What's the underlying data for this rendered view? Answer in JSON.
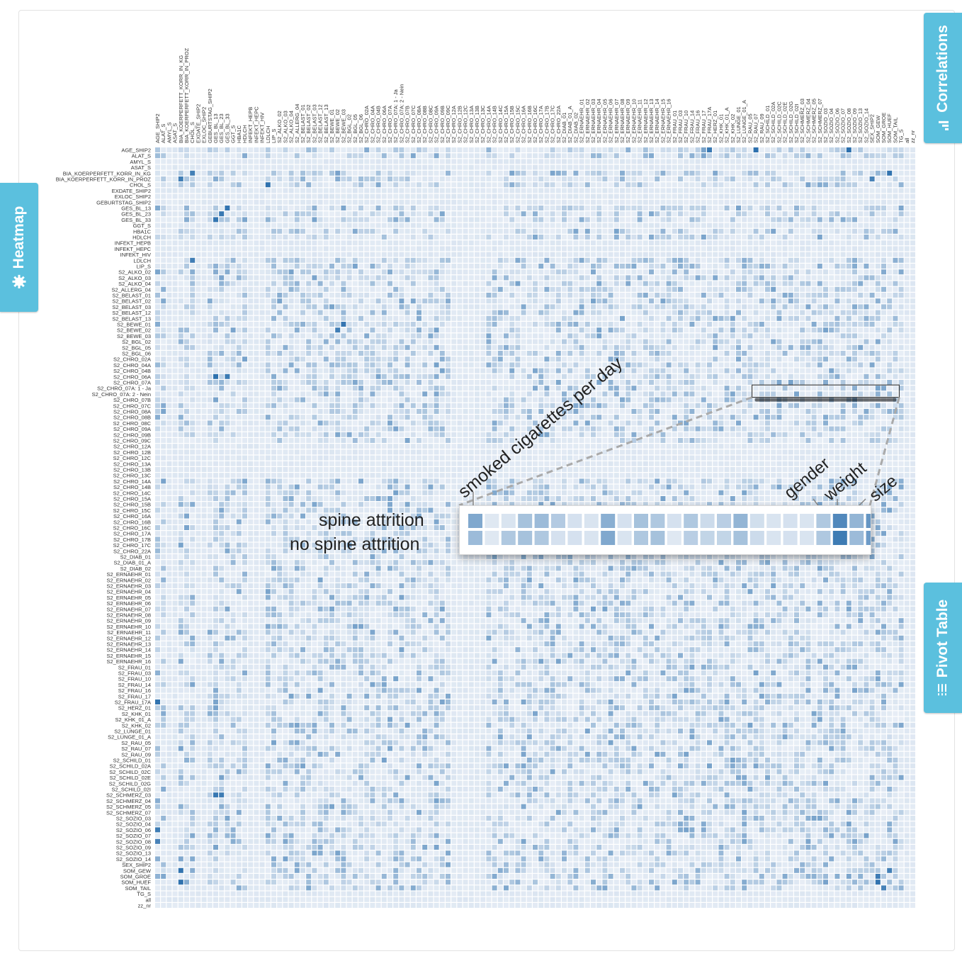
{
  "tabs": {
    "heatmap": "Heatmap",
    "correlations": "Correlations",
    "pivot_table": "Pivot Table"
  },
  "icons": {
    "heatmap": "gear-icon",
    "correlations": "bar-chart-icon",
    "pivot_table": "list-icon"
  },
  "colors": {
    "tab": "#5bc0de",
    "cell_light": "#e8eef6",
    "cell_dark": "#2b6fad",
    "highlight": "#1d4e86"
  },
  "annotations": {
    "smoked": "smoked cigarettes per day",
    "gender": "gender",
    "weight": "weight",
    "size": "size",
    "spine": "spine attrition",
    "no_spine": "no spine attrition"
  },
  "zoom": {
    "rows": [
      "spine attrition",
      "no spine attrition"
    ],
    "spine": [
      0.55,
      0.05,
      0.08,
      0.35,
      0.4,
      0.28,
      0.1,
      0.08,
      0.5,
      0.1,
      0.35,
      0.3,
      0.1,
      0.3,
      0.15,
      0.25,
      0.45,
      0.12,
      0.08,
      0.1,
      0.08,
      0.3,
      0.8,
      0.45,
      0.7
    ],
    "no_spine": [
      0.4,
      0.05,
      0.3,
      0.35,
      0.3,
      0.1,
      0.1,
      0.08,
      0.55,
      0.08,
      0.3,
      0.35,
      0.05,
      0.25,
      0.2,
      0.2,
      0.35,
      0.15,
      0.08,
      0.1,
      0.08,
      0.3,
      0.9,
      0.4,
      0.65
    ]
  },
  "chart_data": {
    "type": "heatmap",
    "rows": [
      "AGE_SHIP2",
      "ALAT_S",
      "AMYL_S",
      "ASAT_S",
      "BIA_KOERPERFETT_KORR_IN_KG",
      "BIA_KOERPERFETT_KORR_IN_PROZ",
      "CHOL_S",
      "EXDATE_SHIP2",
      "EXLOC_SHIP2",
      "GEBURTSTAG_SHIP2",
      "GES_BL_13",
      "GES_BL_23",
      "GES_BL_33",
      "GGT_S",
      "HBA1C",
      "HDLCH",
      "INFEKT_HEPB",
      "INFEKT_HEPC",
      "INFEKT_HIV",
      "LDLCH",
      "LIP_S",
      "S2_ALKO_02",
      "S2_ALKO_03",
      "S2_ALKO_04",
      "S2_ALLERG_04",
      "S2_BELAST_01",
      "S2_BELAST_02",
      "S2_BELAST_03",
      "S2_BELAST_12",
      "S2_BELAST_13",
      "S2_BEWE_01",
      "S2_BEWE_02",
      "S2_BEWE_03",
      "S2_BGL_02",
      "S2_BGL_05",
      "S2_BGL_06",
      "S2_CHRO_02A",
      "S2_CHRO_04A",
      "S2_CHRO_04B",
      "S2_CHRO_06A",
      "S2_CHRO_07A",
      "S2_CHRO_07A: 1 - Ja",
      "S2_CHRO_07A: 2 - Nein",
      "S2_CHRO_07B",
      "S2_CHRO_07C",
      "S2_CHRO_08A",
      "S2_CHRO_08B",
      "S2_CHRO_08C",
      "S2_CHRO_09A",
      "S2_CHRO_09B",
      "S2_CHRO_09C",
      "S2_CHRO_12A",
      "S2_CHRO_12B",
      "S2_CHRO_12C",
      "S2_CHRO_13A",
      "S2_CHRO_13B",
      "S2_CHRO_13C",
      "S2_CHRO_14A",
      "S2_CHRO_14B",
      "S2_CHRO_14C",
      "S2_CHRO_15A",
      "S2_CHRO_15B",
      "S2_CHRO_15C",
      "S2_CHRO_16A",
      "S2_CHRO_16B",
      "S2_CHRO_16C",
      "S2_CHRO_17A",
      "S2_CHRO_17B",
      "S2_CHRO_17C",
      "S2_CHRO_22A",
      "S2_DIAB_01",
      "S2_DIAB_01_A",
      "S2_DIAB_02",
      "S2_ERNAEHR_01",
      "S2_ERNAEHR_02",
      "S2_ERNAEHR_03",
      "S2_ERNAEHR_04",
      "S2_ERNAEHR_05",
      "S2_ERNAEHR_06",
      "S2_ERNAEHR_07",
      "S2_ERNAEHR_08",
      "S2_ERNAEHR_09",
      "S2_ERNAEHR_10",
      "S2_ERNAEHR_11",
      "S2_ERNAEHR_12",
      "S2_ERNAEHR_13",
      "S2_ERNAEHR_14",
      "S2_ERNAEHR_15",
      "S2_ERNAEHR_16",
      "S2_FRAU_01",
      "S2_FRAU_03",
      "S2_FRAU_10",
      "S2_FRAU_14",
      "S2_FRAU_16",
      "S2_FRAU_17",
      "S2_FRAU_17A",
      "S2_HERZ_01",
      "S2_KHK_01",
      "S2_KHK_01_A",
      "S2_KHK_02",
      "S2_LUNGE_01",
      "S2_LUNGE_01_A",
      "S2_RAU_05",
      "S2_RAU_07",
      "S2_RAU_09",
      "S2_SCHILD_01",
      "S2_SCHILD_02A",
      "S2_SCHILD_02C",
      "S2_SCHILD_02E",
      "S2_SCHILD_02G",
      "S2_SCHILD_02I",
      "S2_SCHMERZ_03",
      "S2_SCHMERZ_04",
      "S2_SCHMERZ_05",
      "S2_SCHMERZ_07",
      "S2_SOZIO_03",
      "S2_SOZIO_04",
      "S2_SOZIO_06",
      "S2_SOZIO_07",
      "S2_SOZIO_08",
      "S2_SOZIO_09",
      "S2_SOZIO_13",
      "S2_SOZIO_14",
      "SEX_SHIP2",
      "SOM_GEW",
      "SOM_GROE",
      "SOM_HUEF",
      "SOM_TAIL",
      "TG_S",
      "all",
      "zz_nr"
    ],
    "columns": [
      "AGE_SHIP2",
      "ALAT_S",
      "AMYL_S",
      "ASAT_S",
      "BIA_KOERPERFETT_KORR_IN_KG",
      "BIA_KOERPERFETT_KORR_IN_PROZ",
      "CHOL_S",
      "EXDATE_SHIP2",
      "EXLOC_SHIP2",
      "GEBURTSTAG_SHIP2",
      "GES_BL_13",
      "GES_BL_23",
      "GES_BL_33",
      "GGT_S",
      "HBA1C",
      "HDLCH",
      "INFEKT_HEPB",
      "INFEKT_HEPC",
      "INFEKT_HIV",
      "LDLCH",
      "LIP_S",
      "S2_ALKO_02",
      "S2_ALKO_03",
      "S2_ALKO_04",
      "S2_ALLERG_04",
      "S2_BELAST_01",
      "S2_BELAST_02",
      "S2_BELAST_03",
      "S2_BELAST_12",
      "S2_BELAST_13",
      "S2_BEWE_01",
      "S2_BEWE_02",
      "S2_BEWE_03",
      "S2_BGL_02",
      "S2_BGL_05",
      "S2_BGL_06",
      "S2_CHRO_02A",
      "S2_CHRO_04A",
      "S2_CHRO_04B",
      "S2_CHRO_06A",
      "S2_CHRO_07A",
      "S2_CHRO_07A: 1 - Ja",
      "S2_CHRO_07A: 2 - Nein",
      "S2_CHRO_07B",
      "S2_CHRO_07C",
      "S2_CHRO_08A",
      "S2_CHRO_08B",
      "S2_CHRO_08C",
      "S2_CHRO_09A",
      "S2_CHRO_09B",
      "S2_CHRO_09C",
      "S2_CHRO_12A",
      "S2_CHRO_12B",
      "S2_CHRO_12C",
      "S2_CHRO_13A",
      "S2_CHRO_13B",
      "S2_CHRO_13C",
      "S2_CHRO_14A",
      "S2_CHRO_14B",
      "S2_CHRO_14C",
      "S2_CHRO_15A",
      "S2_CHRO_15B",
      "S2_CHRO_15C",
      "S2_CHRO_16A",
      "S2_CHRO_16B",
      "S2_CHRO_16C",
      "S2_CHRO_17A",
      "S2_CHRO_17B",
      "S2_CHRO_17C",
      "S2_CHRO_22A",
      "S2_DIAB_01",
      "S2_DIAB_01_A",
      "S2_DIAB_02",
      "S2_ERNAEHR_01",
      "S2_ERNAEHR_02",
      "S2_ERNAEHR_03",
      "S2_ERNAEHR_04",
      "S2_ERNAEHR_05",
      "S2_ERNAEHR_06",
      "S2_ERNAEHR_07",
      "S2_ERNAEHR_08",
      "S2_ERNAEHR_09",
      "S2_ERNAEHR_10",
      "S2_ERNAEHR_11",
      "S2_ERNAEHR_12",
      "S2_ERNAEHR_13",
      "S2_ERNAEHR_14",
      "S2_ERNAEHR_15",
      "S2_ERNAEHR_16",
      "S2_FRAU_01",
      "S2_FRAU_03",
      "S2_FRAU_10",
      "S2_FRAU_14",
      "S2_FRAU_16",
      "S2_FRAU_17",
      "S2_FRAU_17A",
      "S2_HERZ_01",
      "S2_KHK_01",
      "S2_KHK_01_A",
      "S2_KHK_02",
      "S2_LUNGE_01",
      "S2_LUNGE_01_A",
      "S2_RAU_05",
      "S2_RAU_07",
      "S2_RAU_09",
      "S2_SCHILD_01",
      "S2_SCHILD_02A",
      "S2_SCHILD_02C",
      "S2_SCHILD_02E",
      "S2_SCHILD_02G",
      "S2_SCHILD_02I",
      "S2_SCHMERZ_03",
      "S2_SCHMERZ_04",
      "S2_SCHMERZ_05",
      "S2_SCHMERZ_07",
      "S2_SOZIO_03",
      "S2_SOZIO_04",
      "S2_SOZIO_06",
      "S2_SOZIO_07",
      "S2_SOZIO_08",
      "S2_SOZIO_09",
      "S2_SOZIO_13",
      "S2_SOZIO_14",
      "SEX_SHIP2",
      "SOM_GEW",
      "SOM_GROE",
      "SOM_HUEF",
      "SOM_TAIL",
      "TG_S",
      "all",
      "zz_nr"
    ],
    "highlighted_row": "S2_CHRO_07A",
    "strong_cells": [
      [
        "BIA_KOERPERFETT_KORR_IN_KG",
        "CHOL_S"
      ],
      [
        "BIA_KOERPERFETT_KORR_IN_PROZ",
        "BIA_KOERPERFETT_KORR_IN_KG"
      ],
      [
        "CHOL_S",
        "LDLCH"
      ],
      [
        "LDLCH",
        "CHOL_S"
      ],
      [
        "GES_BL_13",
        "GES_BL_33"
      ],
      [
        "GES_BL_23",
        "GES_BL_23"
      ],
      [
        "GES_BL_33",
        "GES_BL_13"
      ],
      [
        "S2_BEWE_01",
        "S2_BEWE_03"
      ],
      [
        "S2_BEWE_02",
        "S2_BEWE_02"
      ],
      [
        "S2_CHRO_06A",
        "GES_BL_13"
      ],
      [
        "S2_CHRO_06A",
        "GES_BL_33"
      ],
      [
        "S2_FRAU_17A",
        "AGE_SHIP2"
      ],
      [
        "S2_SOZIO_06",
        "AGE_SHIP2"
      ],
      [
        "S2_SOZIO_08",
        "AGE_SHIP2"
      ],
      [
        "S2_SCHMERZ_03",
        "GES_BL_13"
      ],
      [
        "S2_SCHMERZ_03",
        "GES_BL_23"
      ],
      [
        "SOM_GEW",
        "SOM_HUEF"
      ],
      [
        "SOM_GROE",
        "SOM_GEW"
      ],
      [
        "SOM_HUEF",
        "SOM_GEW"
      ],
      [
        "SOM_TAIL",
        "SOM_GROE"
      ],
      [
        "SOM_GEW",
        "BIA_KOERPERFETT_KORR_IN_KG"
      ],
      [
        "SOM_HUEF",
        "BIA_KOERPERFETT_KORR_IN_KG"
      ],
      [
        "AGE_SHIP2",
        "S2_SOZIO_08"
      ],
      [
        "AGE_SHIP2",
        "S2_FRAU_17A"
      ],
      [
        "AGE_SHIP2",
        "S2_RAU_07"
      ],
      [
        "BIA_KOERPERFETT_KORR_IN_KG",
        "SOM_HUEF"
      ],
      [
        "BIA_KOERPERFETT_KORR_IN_PROZ",
        "SEX_SHIP2"
      ]
    ]
  }
}
